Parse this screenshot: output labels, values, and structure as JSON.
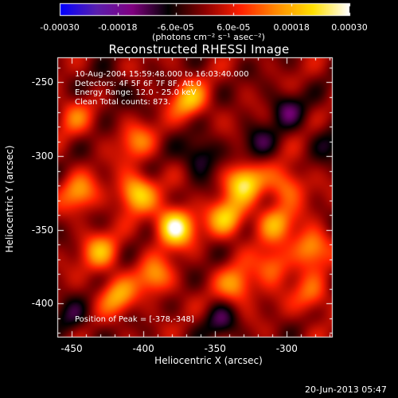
{
  "colorbar": {
    "ticks": [
      "-0.00030",
      "-0.00018",
      "-6.0e-05",
      "6.0e-05",
      "0.00018",
      "0.00030"
    ],
    "unit_label": "(photons cm⁻² s⁻¹ asec⁻²)",
    "range": [
      -0.0003,
      0.0003
    ],
    "colormap": [
      "#0000ff",
      "#5a1fae",
      "#800080",
      "#000000",
      "#8b0000",
      "#ff2000",
      "#ff8c00",
      "#ffe000",
      "#ffffff"
    ]
  },
  "chart_data": {
    "type": "heatmap",
    "title": "Reconstructed RHESSI Image",
    "xlabel": "Heliocentric X (arcsec)",
    "ylabel": "Heliocentric Y (arcsec)",
    "xlim": [
      -460,
      -268
    ],
    "ylim": [
      -423,
      -233
    ],
    "x_ticks": [
      "-450",
      "-400",
      "-350",
      "-300"
    ],
    "y_ticks": [
      "-250",
      "-300",
      "-350",
      "-400"
    ],
    "peak": [
      -378,
      -348
    ],
    "blobs": [
      {
        "x": -378,
        "y": -348,
        "v": 0.0003
      },
      {
        "x": -405,
        "y": -325,
        "v": 0.00022
      },
      {
        "x": -330,
        "y": -318,
        "v": 0.00024
      },
      {
        "x": -342,
        "y": -342,
        "v": 0.0002
      },
      {
        "x": -308,
        "y": -345,
        "v": 0.00016
      },
      {
        "x": -300,
        "y": -320,
        "v": 0.00014
      },
      {
        "x": -445,
        "y": -325,
        "v": 0.00015
      },
      {
        "x": -430,
        "y": -365,
        "v": 0.00016
      },
      {
        "x": -418,
        "y": -395,
        "v": 0.00016
      },
      {
        "x": -368,
        "y": -262,
        "v": 0.00018
      },
      {
        "x": -405,
        "y": -290,
        "v": 0.00012
      },
      {
        "x": -392,
        "y": -382,
        "v": 0.00015
      },
      {
        "x": -335,
        "y": -388,
        "v": 0.00016
      },
      {
        "x": -310,
        "y": -375,
        "v": 0.00014
      },
      {
        "x": -283,
        "y": -362,
        "v": 0.00018
      },
      {
        "x": -283,
        "y": -395,
        "v": 0.00012
      },
      {
        "x": -448,
        "y": -273,
        "v": 0.0001
      },
      {
        "x": -360,
        "y": -300,
        "v": -0.00012
      },
      {
        "x": -300,
        "y": -268,
        "v": -0.0001
      },
      {
        "x": -320,
        "y": -290,
        "v": -8e-05
      },
      {
        "x": -345,
        "y": -413,
        "v": -9e-05
      },
      {
        "x": -450,
        "y": -410,
        "v": -8e-05
      },
      {
        "x": -270,
        "y": -290,
        "v": -7e-05
      },
      {
        "x": -420,
        "y": -255,
        "v": -6e-05
      }
    ]
  },
  "annotations": {
    "time": "10-Aug-2004 15:59:48.000 to 16:03:40.000",
    "detectors": "Detectors: 4F 5F 6F 7F 8F, Att 0",
    "energy": "Energy Range: 12.0 - 25.0 keV",
    "clean": "Clean     Total counts: 873.",
    "peak": "Position of Peak = [-378,-348]"
  },
  "footer": "20-Jun-2013 05:47"
}
